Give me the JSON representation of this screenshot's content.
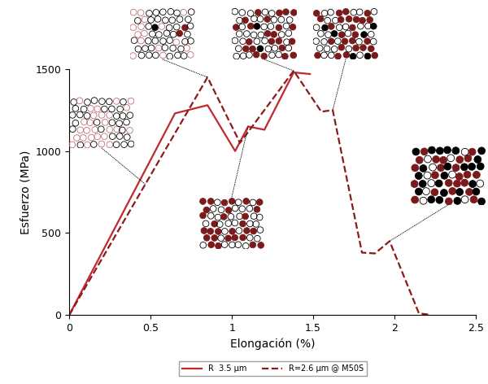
{
  "chart_data": {
    "type": "line",
    "x_label": "Elongación (%)",
    "y_label": "Esfuerzo (MPa)",
    "xlim": [
      0,
      2.5
    ],
    "xticks": [
      0,
      0.5,
      1,
      1.5,
      2,
      2.5
    ],
    "ylim": [
      0,
      1500
    ],
    "yticks": [
      0,
      500,
      1000,
      1500
    ],
    "legend": "lower center",
    "series": [
      {
        "name": "R  3.5 µm",
        "color": "#c0282d",
        "line_style": "solid",
        "x": [
          0,
          0.65,
          0.85,
          1.02,
          1.1,
          1.2,
          1.38,
          1.48
        ],
        "values": [
          0,
          1230,
          1280,
          1000,
          1150,
          1130,
          1480,
          1470
        ]
      },
      {
        "name": "R=2.6 µm @ M50S",
        "color": "#8b1a1a",
        "line_style": "dashed",
        "x": [
          0,
          0.85,
          1.05,
          1.38,
          1.55,
          1.62,
          1.8,
          1.88,
          1.97,
          2.15,
          2.22
        ],
        "values": [
          0,
          1450,
          1050,
          1490,
          1240,
          1250,
          380,
          375,
          450,
          10,
          0
        ]
      }
    ]
  }
}
